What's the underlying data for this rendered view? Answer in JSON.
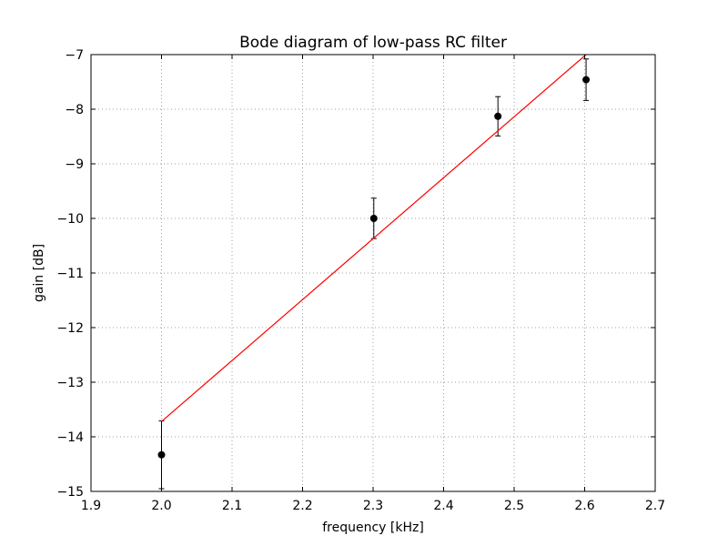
{
  "chart_data": {
    "type": "scatter",
    "title": "Bode diagram of low-pass RC filter",
    "xlabel": "frequency [kHz]",
    "ylabel": "gain [dB]",
    "xlim": [
      1.9,
      2.7
    ],
    "ylim": [
      -15,
      -7
    ],
    "x_ticks": [
      1.9,
      2.0,
      2.1,
      2.2,
      2.3,
      2.4,
      2.5,
      2.6,
      2.7
    ],
    "x_tick_labels": [
      "1.9",
      "2.0",
      "2.1",
      "2.2",
      "2.3",
      "2.4",
      "2.5",
      "2.6",
      "2.7"
    ],
    "y_ticks": [
      -15,
      -14,
      -13,
      -12,
      -11,
      -10,
      -9,
      -8,
      -7
    ],
    "y_tick_labels": [
      "−15",
      "−14",
      "−13",
      "−12",
      "−11",
      "−10",
      "−9",
      "−8",
      "−7"
    ],
    "grid": true,
    "series": [
      {
        "type": "errorbar",
        "color": "#000000",
        "points": [
          {
            "x": 2.0,
            "y": -14.33,
            "yerr": 0.62
          },
          {
            "x": 2.301,
            "y": -10.0,
            "yerr": 0.37
          },
          {
            "x": 2.477,
            "y": -8.13,
            "yerr": 0.36
          },
          {
            "x": 2.602,
            "y": -7.46,
            "yerr": 0.38
          }
        ]
      },
      {
        "type": "line",
        "color": "#ff0000",
        "x": [
          2.0,
          2.602
        ],
        "y": [
          -13.72,
          -7.0
        ]
      }
    ]
  }
}
